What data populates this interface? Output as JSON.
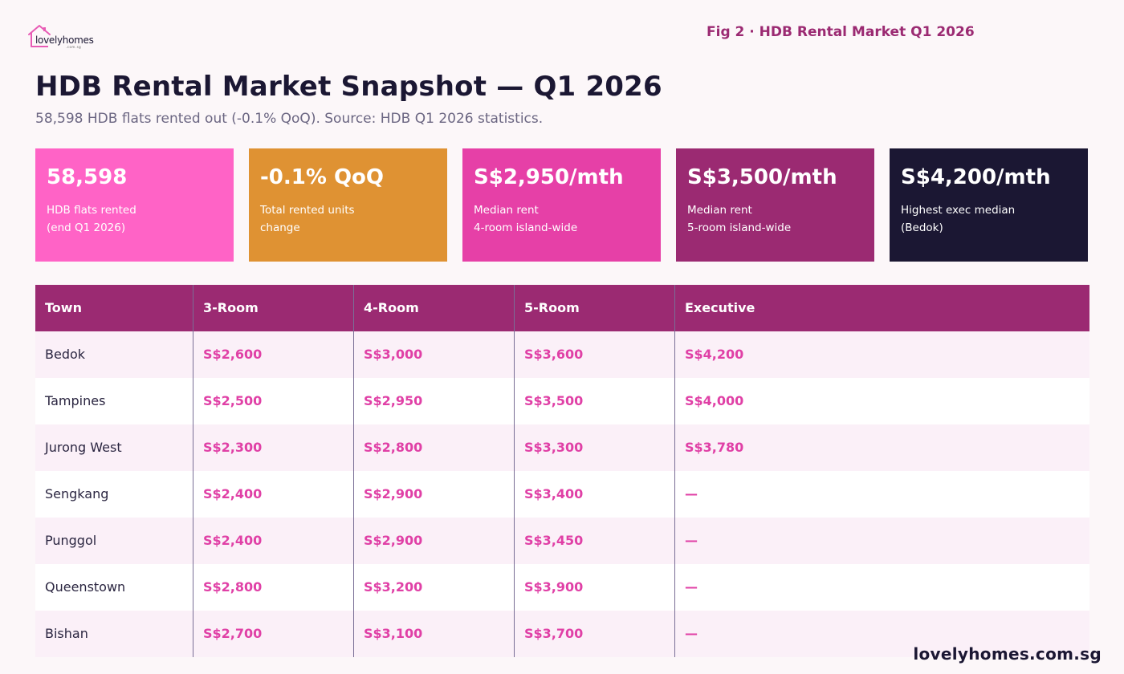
{
  "logo": {
    "text": "lovelyhomes",
    "sub": ".com.sg",
    "color": "#e85bb5"
  },
  "fig_label": "Fig 2 · HDB Rental Market Q1 2026",
  "title": "HDB Rental Market Snapshot — Q1 2026",
  "subtitle": "58,598 HDB flats rented out (-0.1% QoQ). Source: HDB Q1 2026 statistics.",
  "stats": [
    {
      "value": "58,598",
      "line1": "HDB flats rented",
      "line2": "(end Q1 2026)",
      "color": "#ff63c6"
    },
    {
      "value": "-0.1% QoQ",
      "line1": "Total rented units",
      "line2": "change",
      "color": "#df9233"
    },
    {
      "value": "S$2,950/mth",
      "line1": "Median rent",
      "line2": "4-room island-wide",
      "color": "#e640a7"
    },
    {
      "value": "S$3,500/mth",
      "line1": "Median rent",
      "line2": "5-room island-wide",
      "color": "#9b2a72"
    },
    {
      "value": "S$4,200/mth",
      "line1": "Highest exec median",
      "line2": "(Bedok)",
      "color": "#1b1733"
    }
  ],
  "table": {
    "headers": [
      "Town",
      "3-Room",
      "4-Room",
      "5-Room",
      "Executive"
    ],
    "rows": [
      [
        "Bedok",
        "S$2,600",
        "S$3,000",
        "S$3,600",
        "S$4,200"
      ],
      [
        "Tampines",
        "S$2,500",
        "S$2,950",
        "S$3,500",
        "S$4,000"
      ],
      [
        "Jurong West",
        "S$2,300",
        "S$2,800",
        "S$3,300",
        "S$3,780"
      ],
      [
        "Sengkang",
        "S$2,400",
        "S$2,900",
        "S$3,400",
        "—"
      ],
      [
        "Punggol",
        "S$2,400",
        "S$2,900",
        "S$3,450",
        "—"
      ],
      [
        "Queenstown",
        "S$2,800",
        "S$3,200",
        "S$3,900",
        "—"
      ],
      [
        "Bishan",
        "S$2,700",
        "S$3,100",
        "S$3,700",
        "—"
      ]
    ]
  },
  "footer": "lovelyhomes.com.sg"
}
